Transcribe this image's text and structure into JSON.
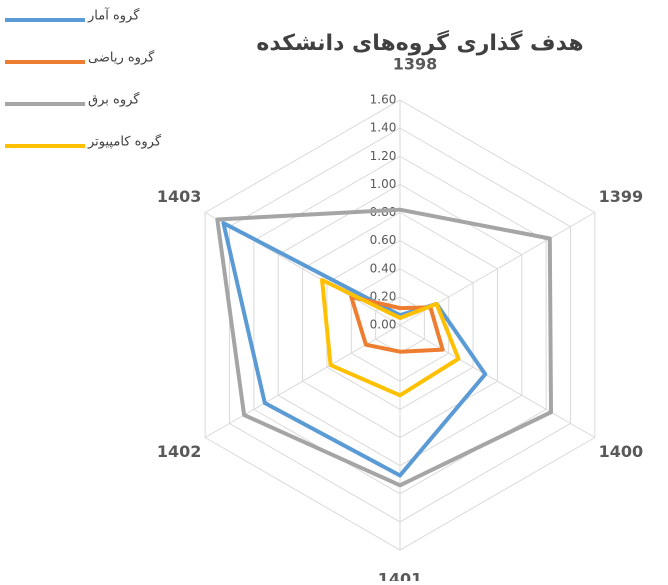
{
  "chart_data": {
    "type": "radar",
    "title": "هدف گذاری گروه‌های دانشکده",
    "categories": [
      "1398",
      "1399",
      "1400",
      "1401",
      "1402",
      "1403"
    ],
    "series": [
      {
        "name": "گروه آمار",
        "color": "#5b9bd5",
        "values": [
          0.07,
          0.3,
          0.7,
          1.07,
          1.11,
          1.45
        ]
      },
      {
        "name": "گروه ریاضی",
        "color": "#ed7d31",
        "values": [
          0.12,
          0.25,
          0.35,
          0.19,
          0.28,
          0.4
        ]
      },
      {
        "name": "گروه برق",
        "color": "#a5a5a5",
        "values": [
          0.82,
          1.23,
          1.24,
          1.14,
          1.28,
          1.5
        ]
      },
      {
        "name": "گروه کامپیوتر",
        "color": "#ffc000",
        "values": [
          0.05,
          0.3,
          0.48,
          0.5,
          0.57,
          0.64
        ]
      }
    ],
    "ylim": [
      0,
      1.6
    ],
    "yticks": [
      {
        "value": 0,
        "label": "0.00"
      },
      {
        "value": 0.2,
        "label": "0.20"
      },
      {
        "value": 0.4,
        "label": "0.40"
      },
      {
        "value": 0.6,
        "label": "0.60"
      },
      {
        "value": 0.8,
        "label": "0.80"
      },
      {
        "value": 1.0,
        "label": "1.00"
      },
      {
        "value": 1.2,
        "label": "1.20"
      },
      {
        "value": 1.4,
        "label": "1.40"
      },
      {
        "value": 1.6,
        "label": "1.60"
      }
    ],
    "grid": true,
    "legend": "top-left"
  }
}
